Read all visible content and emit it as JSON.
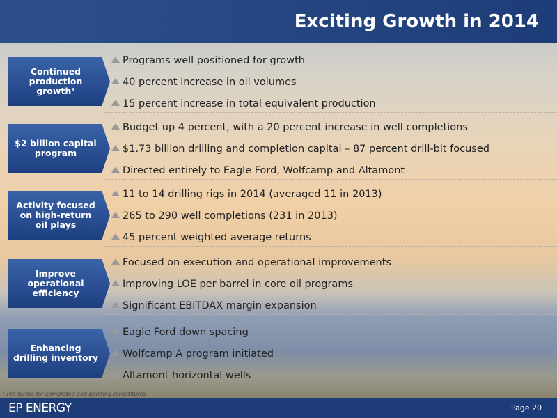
{
  "header": {
    "title": "Exciting Growth in 2014"
  },
  "sections": [
    {
      "label": "Continued production growth¹",
      "bullets": [
        "Programs well positioned for growth",
        "40 percent increase in oil volumes",
        "15 percent increase in total equivalent production"
      ]
    },
    {
      "label": "$2 billion capital program",
      "bullets": [
        "Budget up 4 percent, with a 20 percent increase in well completions",
        "$1.73 billion drilling and completion capital – 87 percent drill-bit focused",
        "Directed entirely to Eagle Ford, Wolfcamp and Altamont"
      ]
    },
    {
      "label": "Activity focused on high-return oil plays",
      "bullets": [
        "11 to 14 drilling rigs in 2014 (averaged 11 in 2013)",
        "265 to 290 well completions (231 in 2013)",
        "45 percent weighted average returns"
      ]
    },
    {
      "label": "Improve operational efficiency",
      "bullets": [
        "Focused on execution and operational improvements",
        "Improving LOE per barrel in core oil programs",
        "Significant EBITDAX margin expansion"
      ]
    },
    {
      "label": "Enhancing drilling inventory",
      "bullets": [
        "Eagle Ford down spacing",
        "Wolfcamp A program initiated",
        "Altamont horizontal wells"
      ]
    }
  ],
  "footnote": "¹ Pro forma for completed and pending divestitures",
  "footer": {
    "logo": "EP ENERGY",
    "page": "Page 20"
  }
}
